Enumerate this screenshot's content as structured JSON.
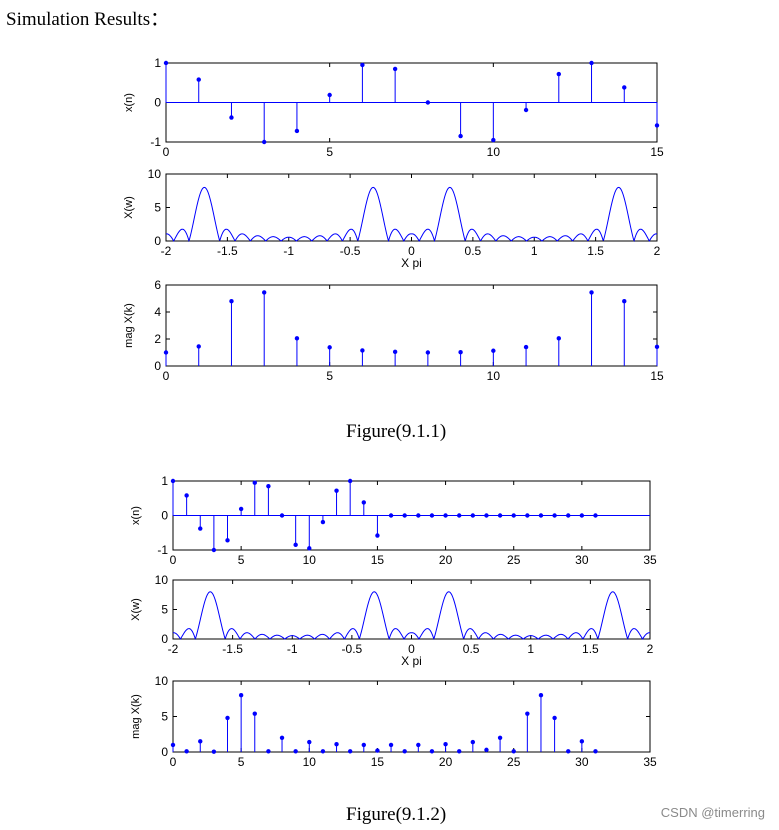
{
  "heading": "Simulation Results：",
  "captions": [
    "Figure(9.1.1)",
    "Figure(9.1.2)"
  ],
  "watermark": "CSDN @timerring",
  "colors": {
    "stem": "#0000ff",
    "axis": "#000000"
  },
  "chart_data": [
    {
      "type": "stem",
      "ylabel": "x(n)",
      "xlabel": "",
      "xlim": [
        0,
        15
      ],
      "ylim": [
        -1,
        1
      ],
      "xticks": [
        "0",
        "5",
        "10",
        "15"
      ],
      "yticks": [
        "-1",
        "0",
        "1"
      ],
      "x": [
        0,
        1,
        2,
        3,
        4,
        5,
        6,
        7,
        8,
        9,
        10,
        11,
        12,
        13,
        14,
        15
      ],
      "values": [
        1.0,
        0.58,
        -0.38,
        -1.0,
        -0.72,
        0.19,
        0.95,
        0.85,
        0.0,
        -0.85,
        -0.95,
        -0.19,
        0.72,
        1.0,
        0.38,
        -0.58
      ]
    },
    {
      "type": "line",
      "ylabel": "X(w)",
      "xlabel": "X pi",
      "xlim": [
        -2,
        2
      ],
      "ylim": [
        0,
        10
      ],
      "xticks": [
        "-2",
        "-1.5",
        "-1",
        "-0.5",
        "0",
        "0.5",
        "1",
        "1.5",
        "2"
      ],
      "yticks": [
        "0",
        "5",
        "10"
      ],
      "N": 16,
      "peaks": [
        -1.6875,
        -0.3125,
        0.3125,
        1.6875
      ],
      "peak_value": 8.0
    },
    {
      "type": "stem",
      "ylabel": "mag X(k)",
      "xlabel": "",
      "xlim": [
        0,
        15
      ],
      "ylim": [
        0,
        6
      ],
      "xticks": [
        "0",
        "5",
        "10",
        "15"
      ],
      "yticks": [
        "0",
        "2",
        "4",
        "6"
      ],
      "x": [
        0,
        1,
        2,
        3,
        4,
        5,
        6,
        7,
        8,
        9,
        10,
        11,
        12,
        13,
        14,
        15
      ],
      "values": [
        1.0,
        1.45,
        4.8,
        5.45,
        2.05,
        1.38,
        1.15,
        1.05,
        1.0,
        1.02,
        1.13,
        1.4,
        2.05,
        5.45,
        4.8,
        1.42
      ]
    },
    {
      "type": "stem",
      "ylabel": "x(n)",
      "xlabel": "",
      "xlim": [
        0,
        35
      ],
      "ylim": [
        -1,
        1
      ],
      "xticks": [
        "0",
        "5",
        "10",
        "15",
        "20",
        "25",
        "30",
        "35"
      ],
      "yticks": [
        "-1",
        "0",
        "1"
      ],
      "x": [
        0,
        1,
        2,
        3,
        4,
        5,
        6,
        7,
        8,
        9,
        10,
        11,
        12,
        13,
        14,
        15,
        16,
        17,
        18,
        19,
        20,
        21,
        22,
        23,
        24,
        25,
        26,
        27,
        28,
        29,
        30,
        31
      ],
      "values": [
        1.0,
        0.58,
        -0.38,
        -1.0,
        -0.72,
        0.19,
        0.95,
        0.85,
        0.0,
        -0.85,
        -0.95,
        -0.19,
        0.72,
        1.0,
        0.38,
        -0.58,
        0,
        0,
        0,
        0,
        0,
        0,
        0,
        0,
        0,
        0,
        0,
        0,
        0,
        0,
        0,
        0
      ]
    },
    {
      "type": "line",
      "ylabel": "X(w)",
      "xlabel": "X pi",
      "xlim": [
        -2,
        2
      ],
      "ylim": [
        0,
        10
      ],
      "xticks": [
        "-2",
        "-1.5",
        "-1",
        "-0.5",
        "0",
        "0.5",
        "1",
        "1.5",
        "2"
      ],
      "yticks": [
        "0",
        "5",
        "10"
      ],
      "N": 16,
      "peaks": [
        -1.6875,
        -0.3125,
        0.3125,
        1.6875
      ],
      "peak_value": 8.0
    },
    {
      "type": "stem",
      "ylabel": "mag X(k)",
      "xlabel": "",
      "xlim": [
        0,
        35
      ],
      "ylim": [
        0,
        10
      ],
      "xticks": [
        "0",
        "5",
        "10",
        "15",
        "20",
        "25",
        "30",
        "35"
      ],
      "yticks": [
        "0",
        "5",
        "10"
      ],
      "x": [
        0,
        1,
        2,
        3,
        4,
        5,
        6,
        7,
        8,
        9,
        10,
        11,
        12,
        13,
        14,
        15,
        16,
        17,
        18,
        19,
        20,
        21,
        22,
        23,
        24,
        25,
        26,
        27,
        28,
        29,
        30,
        31
      ],
      "values": [
        1.0,
        0.1,
        1.5,
        0.05,
        4.8,
        8.0,
        5.4,
        0.1,
        2.0,
        0.1,
        1.4,
        0.1,
        1.1,
        0.1,
        1.0,
        0.2,
        1.0,
        0.1,
        1.0,
        0.1,
        1.1,
        0.1,
        1.4,
        0.3,
        2.0,
        0.1,
        5.4,
        8.0,
        4.8,
        0.1,
        1.5,
        0.1
      ]
    }
  ]
}
